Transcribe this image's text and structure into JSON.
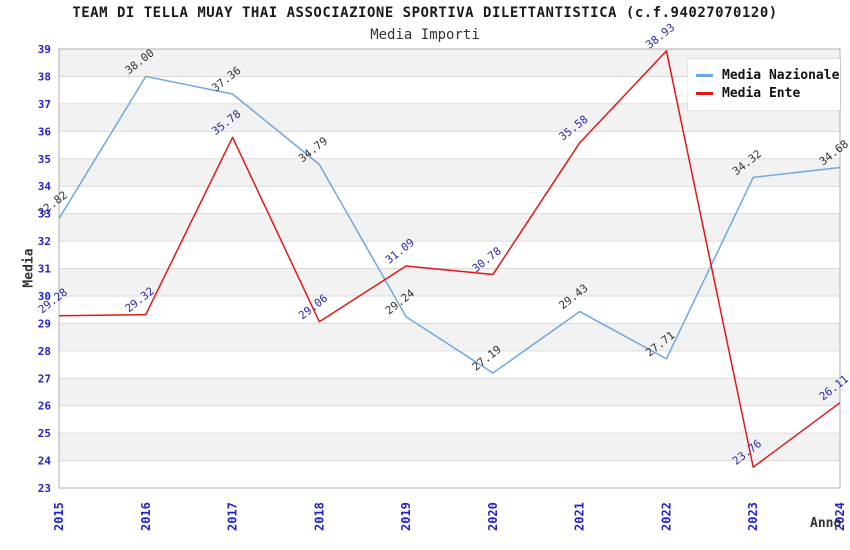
{
  "chart_data": {
    "type": "line",
    "title": "TEAM DI TELLA MUAY THAI ASSOCIAZIONE SPORTIVA DILETTANTISTICA (c.f.94027070120)",
    "subtitle": "Media Importi",
    "xlabel": "Anno",
    "ylabel": "Media",
    "x": [
      2015,
      2016,
      2017,
      2018,
      2019,
      2020,
      2021,
      2022,
      2023,
      2024
    ],
    "ylim": [
      23,
      39
    ],
    "grid": true,
    "striped_bands": true,
    "legend_position": "top-right",
    "colors": {
      "axis_tick": "#2222CC",
      "gridline": "#DBDBDB",
      "stripe": "#F2F2F2",
      "plot_border": "#B0B0B0"
    },
    "series": [
      {
        "name": "Media Nazionale",
        "color": "#6FA8E1",
        "label_color": "#333333",
        "values": [
          32.82,
          38.0,
          37.36,
          34.79,
          29.24,
          27.19,
          29.43,
          27.71,
          34.32,
          34.68
        ]
      },
      {
        "name": "Media Ente",
        "color": "#E01818",
        "label_color": "#2929AA",
        "values": [
          29.28,
          29.32,
          35.78,
          29.06,
          31.09,
          30.78,
          35.58,
          38.93,
          23.76,
          26.11
        ]
      }
    ]
  }
}
